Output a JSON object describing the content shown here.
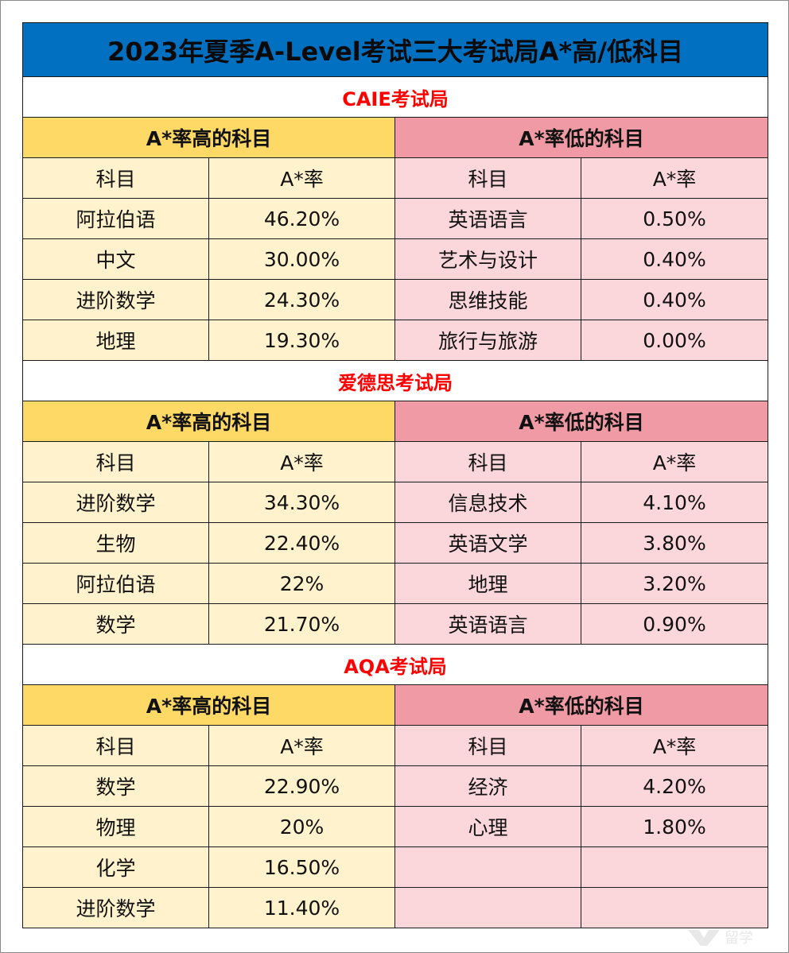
{
  "title": "2023年夏季A-Level考试三大考试局A*高/低科目",
  "high_header": "A*率高的科目",
  "low_header": "A*率低的科目",
  "col_subject": "科目",
  "col_rate": "A*率",
  "colors": {
    "title_bg": "#0270C0",
    "board_text": "#FF0000",
    "high_header_bg": "#FFD966",
    "high_cell_bg": "#FFF2CC",
    "low_header_bg": "#EF9AA4",
    "low_cell_bg": "#FBD7DC"
  },
  "boards": [
    {
      "name": "CAIE考试局",
      "rows": [
        {
          "high_subject": "阿拉伯语",
          "high_rate": "46.20%",
          "low_subject": "英语语言",
          "low_rate": "0.50%"
        },
        {
          "high_subject": "中文",
          "high_rate": "30.00%",
          "low_subject": "艺术与设计",
          "low_rate": "0.40%"
        },
        {
          "high_subject": "进阶数学",
          "high_rate": "24.30%",
          "low_subject": "思维技能",
          "low_rate": "0.40%"
        },
        {
          "high_subject": "地理",
          "high_rate": "19.30%",
          "low_subject": "旅行与旅游",
          "low_rate": "0.00%"
        }
      ]
    },
    {
      "name": "爱德思考试局",
      "rows": [
        {
          "high_subject": "进阶数学",
          "high_rate": "34.30%",
          "low_subject": "信息技术",
          "low_rate": "4.10%"
        },
        {
          "high_subject": "生物",
          "high_rate": "22.40%",
          "low_subject": "英语文学",
          "low_rate": "3.80%"
        },
        {
          "high_subject": "阿拉伯语",
          "high_rate": "22%",
          "low_subject": "地理",
          "low_rate": "3.20%"
        },
        {
          "high_subject": "数学",
          "high_rate": "21.70%",
          "low_subject": "英语语言",
          "low_rate": "0.90%"
        }
      ]
    },
    {
      "name": "AQA考试局",
      "rows": [
        {
          "high_subject": "数学",
          "high_rate": "22.90%",
          "low_subject": "经济",
          "low_rate": "4.20%"
        },
        {
          "high_subject": "物理",
          "high_rate": "20%",
          "low_subject": "心理",
          "low_rate": "1.80%"
        },
        {
          "high_subject": "化学",
          "high_rate": "16.50%",
          "low_subject": "",
          "low_rate": ""
        },
        {
          "high_subject": "进阶数学",
          "high_rate": "11.40%",
          "low_subject": "",
          "low_rate": ""
        }
      ]
    }
  ],
  "watermark": {
    "icon": "logo-mark-icon",
    "text": "留学"
  }
}
